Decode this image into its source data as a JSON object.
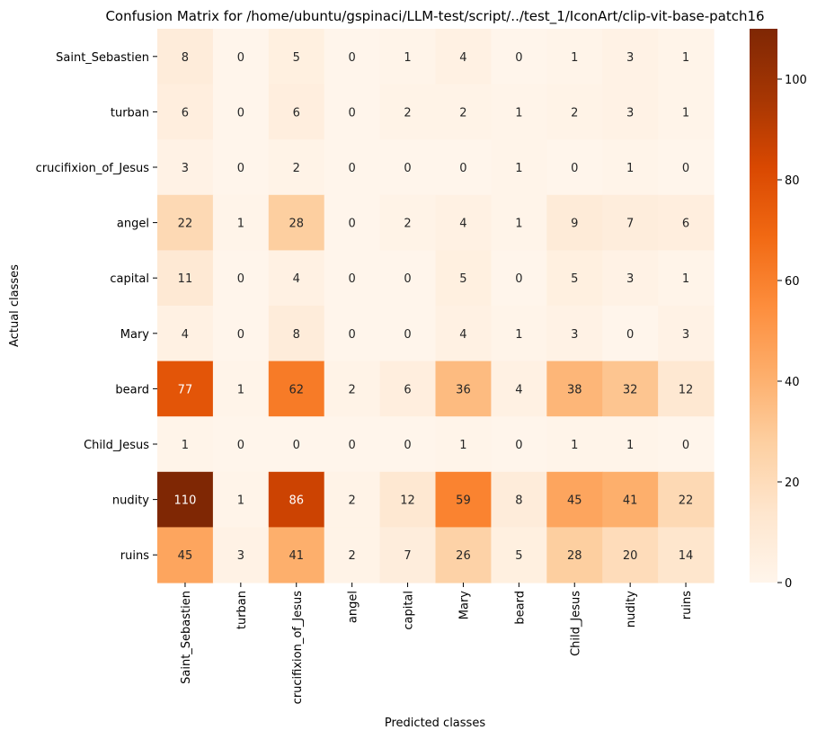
{
  "chart_data": {
    "type": "heatmap",
    "title": "Confusion Matrix for /home/ubuntu/gspinaci/LLM-test/script/../test_1/IconArt/clip-vit-base-patch16",
    "xlabel": "Predicted classes",
    "ylabel": "Actual classes",
    "x_categories": [
      "Saint_Sebastien",
      "turban",
      "crucifixion_of_Jesus",
      "angel",
      "capital",
      "Mary",
      "beard",
      "Child_Jesus",
      "nudity",
      "ruins"
    ],
    "y_categories": [
      "Saint_Sebastien",
      "turban",
      "crucifixion_of_Jesus",
      "angel",
      "capital",
      "Mary",
      "beard",
      "Child_Jesus",
      "nudity",
      "ruins"
    ],
    "values": [
      [
        8,
        0,
        5,
        0,
        1,
        4,
        0,
        1,
        3,
        1
      ],
      [
        6,
        0,
        6,
        0,
        2,
        2,
        1,
        2,
        3,
        1
      ],
      [
        3,
        0,
        2,
        0,
        0,
        0,
        1,
        0,
        1,
        0
      ],
      [
        22,
        1,
        28,
        0,
        2,
        4,
        1,
        9,
        7,
        6
      ],
      [
        11,
        0,
        4,
        0,
        0,
        5,
        0,
        5,
        3,
        1
      ],
      [
        4,
        0,
        8,
        0,
        0,
        4,
        1,
        3,
        0,
        3
      ],
      [
        77,
        1,
        62,
        2,
        6,
        36,
        4,
        38,
        32,
        12
      ],
      [
        1,
        0,
        0,
        0,
        0,
        1,
        0,
        1,
        1,
        0
      ],
      [
        110,
        1,
        86,
        2,
        12,
        59,
        8,
        45,
        41,
        22
      ],
      [
        45,
        3,
        41,
        2,
        7,
        26,
        5,
        28,
        20,
        14
      ]
    ],
    "colormap": "Oranges",
    "vmin": 0,
    "vmax": 110,
    "colorbar_ticks": [
      0,
      20,
      40,
      60,
      80,
      100
    ],
    "grid": false,
    "legend": "colorbar-right"
  }
}
